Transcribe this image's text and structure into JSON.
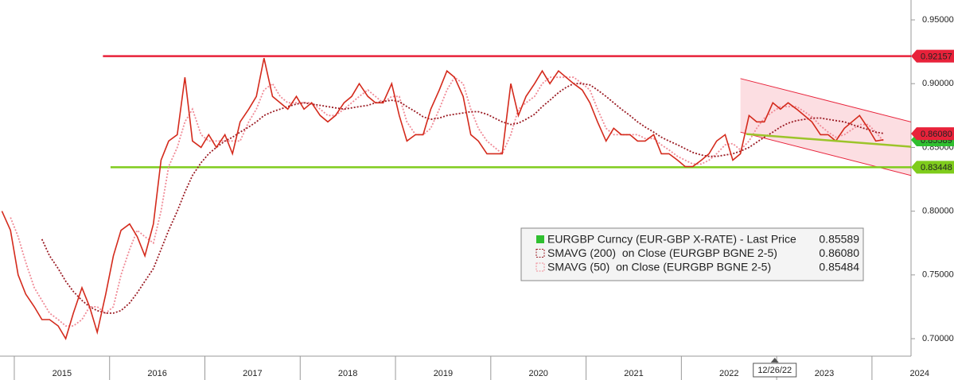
{
  "chart_data": {
    "type": "line",
    "x": [
      2014.87,
      2014.96,
      2015.04,
      2015.12,
      2015.21,
      2015.29,
      2015.37,
      2015.46,
      2015.54,
      2015.62,
      2015.71,
      2015.79,
      2015.87,
      2015.96,
      2016.04,
      2016.12,
      2016.21,
      2016.29,
      2016.37,
      2016.46,
      2016.54,
      2016.62,
      2016.71,
      2016.79,
      2016.87,
      2016.96,
      2017.04,
      2017.12,
      2017.21,
      2017.29,
      2017.37,
      2017.46,
      2017.54,
      2017.62,
      2017.71,
      2017.79,
      2017.87,
      2017.96,
      2018.04,
      2018.12,
      2018.21,
      2018.29,
      2018.37,
      2018.46,
      2018.54,
      2018.62,
      2018.71,
      2018.79,
      2018.87,
      2018.96,
      2019.04,
      2019.12,
      2019.21,
      2019.29,
      2019.37,
      2019.46,
      2019.54,
      2019.62,
      2019.71,
      2019.79,
      2019.87,
      2019.96,
      2020.04,
      2020.12,
      2020.21,
      2020.29,
      2020.37,
      2020.46,
      2020.54,
      2020.62,
      2020.71,
      2020.79,
      2020.87,
      2020.96,
      2021.04,
      2021.12,
      2021.21,
      2021.29,
      2021.37,
      2021.46,
      2021.54,
      2021.62,
      2021.71,
      2021.79,
      2021.87,
      2021.96,
      2022.04,
      2022.12,
      2022.21,
      2022.29,
      2022.37,
      2022.46,
      2022.54,
      2022.62,
      2022.71,
      2022.79,
      2022.87,
      2022.96,
      2023.04,
      2023.12,
      2023.21,
      2023.29,
      2023.37,
      2023.46,
      2023.54,
      2023.62,
      2023.71,
      2023.79,
      2023.87,
      2023.96,
      2024.04,
      2024.12
    ],
    "series": [
      {
        "name": "EURGBP Curncy (EUR-GBP X-RATE) - Last Price",
        "color": "#d42a1c",
        "swatch": "#2fbf2f",
        "tag_color": "#2fbf2f",
        "last": 0.85589,
        "values": [
          0.8,
          0.785,
          0.75,
          0.735,
          0.725,
          0.715,
          0.715,
          0.71,
          0.7,
          0.72,
          0.74,
          0.725,
          0.705,
          0.735,
          0.765,
          0.785,
          0.79,
          0.78,
          0.765,
          0.79,
          0.84,
          0.855,
          0.86,
          0.905,
          0.855,
          0.85,
          0.86,
          0.85,
          0.86,
          0.845,
          0.87,
          0.88,
          0.89,
          0.92,
          0.89,
          0.885,
          0.88,
          0.89,
          0.88,
          0.885,
          0.875,
          0.87,
          0.875,
          0.885,
          0.89,
          0.9,
          0.89,
          0.885,
          0.885,
          0.9,
          0.875,
          0.855,
          0.86,
          0.86,
          0.88,
          0.895,
          0.91,
          0.905,
          0.89,
          0.86,
          0.855,
          0.845,
          0.845,
          0.845,
          0.9,
          0.875,
          0.89,
          0.9,
          0.91,
          0.9,
          0.91,
          0.905,
          0.9,
          0.895,
          0.885,
          0.87,
          0.855,
          0.865,
          0.86,
          0.86,
          0.855,
          0.855,
          0.86,
          0.845,
          0.845,
          0.84,
          0.835,
          0.835,
          0.84,
          0.845,
          0.855,
          0.86,
          0.84,
          0.845,
          0.875,
          0.87,
          0.87,
          0.885,
          0.88,
          0.885,
          0.88,
          0.875,
          0.87,
          0.86,
          0.86,
          0.855,
          0.865,
          0.87,
          0.875,
          0.865,
          0.855,
          0.856
        ]
      },
      {
        "name": "SMAVG (200)  on Close (EURGBP BGNE 2-5)",
        "color": "#9b1c24",
        "tag_color": "#e8223a",
        "last": {
          "value": 0.8608,
          "label": "0.86080"
        },
        "values": [
          null,
          null,
          null,
          null,
          null,
          0.778,
          0.765,
          0.755,
          0.745,
          0.737,
          0.73,
          0.725,
          0.722,
          0.72,
          0.72,
          0.722,
          0.728,
          0.736,
          0.745,
          0.755,
          0.77,
          0.785,
          0.8,
          0.815,
          0.828,
          0.838,
          0.845,
          0.85,
          0.855,
          0.858,
          0.862,
          0.866,
          0.87,
          0.875,
          0.878,
          0.88,
          0.882,
          0.884,
          0.885,
          0.884,
          0.883,
          0.882,
          0.881,
          0.88,
          0.881,
          0.882,
          0.883,
          0.885,
          0.886,
          0.887,
          0.886,
          0.882,
          0.878,
          0.874,
          0.872,
          0.873,
          0.875,
          0.876,
          0.877,
          0.878,
          0.878,
          0.876,
          0.873,
          0.87,
          0.868,
          0.869,
          0.872,
          0.876,
          0.882,
          0.887,
          0.893,
          0.897,
          0.9,
          0.9,
          0.899,
          0.895,
          0.89,
          0.885,
          0.88,
          0.875,
          0.87,
          0.866,
          0.862,
          0.858,
          0.855,
          0.852,
          0.849,
          0.846,
          0.844,
          0.843,
          0.843,
          0.844,
          0.845,
          0.847,
          0.85,
          0.854,
          0.858,
          0.862,
          0.866,
          0.869,
          0.871,
          0.872,
          0.873,
          0.873,
          0.872,
          0.871,
          0.87,
          0.868,
          0.866,
          0.864,
          0.862,
          0.861
        ]
      },
      {
        "name": "SMAVG (50)  on Close (EURGBP BGNE 2-5)",
        "color": "#f08a96",
        "last": 0.85484,
        "values": [
          null,
          0.795,
          0.78,
          0.76,
          0.74,
          0.73,
          0.72,
          0.715,
          0.71,
          0.71,
          0.715,
          0.725,
          0.725,
          0.72,
          0.725,
          0.75,
          0.77,
          0.785,
          0.78,
          0.775,
          0.8,
          0.835,
          0.85,
          0.87,
          0.88,
          0.86,
          0.855,
          0.855,
          0.855,
          0.855,
          0.855,
          0.87,
          0.88,
          0.895,
          0.9,
          0.89,
          0.885,
          0.885,
          0.885,
          0.885,
          0.88,
          0.875,
          0.875,
          0.88,
          0.885,
          0.89,
          0.895,
          0.89,
          0.885,
          0.89,
          0.89,
          0.87,
          0.86,
          0.86,
          0.865,
          0.88,
          0.895,
          0.905,
          0.9,
          0.88,
          0.865,
          0.855,
          0.85,
          0.845,
          0.86,
          0.88,
          0.885,
          0.89,
          0.9,
          0.905,
          0.905,
          0.905,
          0.905,
          0.9,
          0.895,
          0.88,
          0.865,
          0.86,
          0.86,
          0.86,
          0.86,
          0.857,
          0.857,
          0.852,
          0.848,
          0.843,
          0.84,
          0.837,
          0.837,
          0.84,
          0.845,
          0.852,
          0.853,
          0.848,
          0.855,
          0.865,
          0.873,
          0.878,
          0.882,
          0.882,
          0.882,
          0.878,
          0.874,
          0.867,
          0.862,
          0.858,
          0.86,
          0.864,
          0.868,
          0.868,
          0.862,
          0.855
        ]
      }
    ],
    "xlim": [
      2014.85,
      2024.41
    ],
    "xticks": [
      {
        "value": 2015.5,
        "label": "2015"
      },
      {
        "value": 2016.5,
        "label": "2016"
      },
      {
        "value": 2017.5,
        "label": "2017"
      },
      {
        "value": 2018.5,
        "label": "2018"
      },
      {
        "value": 2019.5,
        "label": "2019"
      },
      {
        "value": 2020.5,
        "label": "2020"
      },
      {
        "value": 2021.5,
        "label": "2021"
      },
      {
        "value": 2022.5,
        "label": "2022"
      },
      {
        "value": 2023.5,
        "label": "2023"
      },
      {
        "value": 2024.5,
        "label": "2024"
      }
    ],
    "ylim": [
      0.6863,
      0.9656
    ],
    "yticks": [
      {
        "value": 0.7,
        "label": "0.70000"
      },
      {
        "value": 0.75,
        "label": "0.75000"
      },
      {
        "value": 0.8,
        "label": "0.80000"
      },
      {
        "value": 0.85,
        "label": "0.85000"
      },
      {
        "value": 0.9,
        "label": "0.90000"
      },
      {
        "value": 0.95,
        "label": "0.95000"
      }
    ],
    "hlines": [
      {
        "value": 0.92157,
        "color": "#e8223a",
        "x": [
          2015.93,
          2024.41
        ]
      },
      {
        "value": 0.83448,
        "color": "#7fcc1c",
        "x": [
          2016.01,
          2024.41
        ]
      }
    ],
    "channel": {
      "x": [
        2022.62,
        2024.41
      ],
      "upper": [
        0.904,
        0.87
      ],
      "lower": [
        0.862,
        0.828
      ],
      "color": "#e8223a"
    },
    "trendline": {
      "x": [
        2022.68,
        2024.41
      ],
      "y": [
        0.8605,
        0.8505
      ],
      "color": "#9cc42a"
    },
    "annotation": {
      "x": 2022.98,
      "text": "12/26/22"
    }
  }
}
